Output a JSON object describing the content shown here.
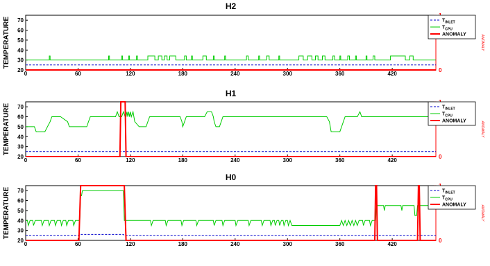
{
  "chart_data": [
    {
      "type": "line",
      "title": "H2",
      "ylabel": "TEMPERATURE",
      "right_ylabel": "ANOMALY",
      "xlim": [
        0,
        470
      ],
      "ylim": [
        20,
        75
      ],
      "right_ylim": [
        0,
        1
      ],
      "x_ticks": [
        0,
        60,
        120,
        180,
        240,
        300,
        360,
        420
      ],
      "y_ticks": [
        20,
        30,
        40,
        50,
        60,
        70
      ],
      "right_y_ticks": [
        0,
        1
      ],
      "grid": false,
      "legend_position": "top-right",
      "legend": [
        {
          "main": "T",
          "sub": "INLET",
          "color": "#0000cc",
          "style": "dashed"
        },
        {
          "main": "T",
          "sub": "CPU",
          "color": "#00cc00",
          "style": "solid"
        },
        {
          "main": "ANOMALY",
          "sub": "",
          "color": "#ff0000",
          "style": "solid"
        }
      ],
      "series": [
        {
          "key": "inlet",
          "baseline": 25,
          "spikes": [],
          "color": "#0000cc"
        },
        {
          "key": "cpu",
          "baseline": 30,
          "color": "#00cc00",
          "spikes": [
            [
              27,
              28,
              34
            ],
            [
              95,
              96,
              34
            ],
            [
              110,
              111,
              34
            ],
            [
              118,
              119,
              34
            ],
            [
              127,
              128,
              34
            ],
            [
              140,
              148,
              34
            ],
            [
              152,
              156,
              34
            ],
            [
              159,
              162,
              34
            ],
            [
              165,
              172,
              34
            ],
            [
              182,
              184,
              34
            ],
            [
              190,
              191,
              34
            ],
            [
              203,
              207,
              34
            ],
            [
              215,
              216,
              34
            ],
            [
              228,
              229,
              34
            ],
            [
              253,
              255,
              34
            ],
            [
              267,
              268,
              34
            ],
            [
              276,
              279,
              34
            ],
            [
              290,
              291,
              34
            ],
            [
              313,
              318,
              34
            ],
            [
              323,
              328,
              34
            ],
            [
              332,
              335,
              34
            ],
            [
              340,
              343,
              34
            ],
            [
              352,
              354,
              34
            ],
            [
              360,
              361,
              34
            ],
            [
              369,
              371,
              34
            ],
            [
              378,
              379,
              34
            ],
            [
              390,
              391,
              34
            ],
            [
              398,
              400,
              34
            ],
            [
              418,
              435,
              34
            ],
            [
              440,
              444,
              34
            ]
          ]
        },
        {
          "key": "anomaly",
          "baseline": 0,
          "spikes": [],
          "color": "#ff0000"
        }
      ]
    },
    {
      "type": "line",
      "title": "H1",
      "ylabel": "TEMPERATURE",
      "right_ylabel": "ANOMALY",
      "xlim": [
        0,
        470
      ],
      "ylim": [
        20,
        75
      ],
      "right_ylim": [
        0,
        1
      ],
      "x_ticks": [
        0,
        60,
        120,
        180,
        240,
        300,
        360,
        420
      ],
      "y_ticks": [
        20,
        30,
        40,
        50,
        60,
        70
      ],
      "right_y_ticks": [
        0,
        1
      ],
      "grid": false,
      "legend_position": "top-right",
      "legend": [
        {
          "main": "T",
          "sub": "INLET",
          "color": "#0000cc",
          "style": "dashed"
        },
        {
          "main": "T",
          "sub": "CPU",
          "color": "#00cc00",
          "style": "solid"
        },
        {
          "main": "ANOMALY",
          "sub": "",
          "color": "#ff0000",
          "style": "solid"
        }
      ],
      "series": [
        {
          "key": "inlet",
          "baseline": 25,
          "spikes": [],
          "color": "#0000cc"
        },
        {
          "key": "cpu",
          "color": "#00cc00",
          "points": [
            [
              0,
              50
            ],
            [
              10,
              50
            ],
            [
              12,
              45
            ],
            [
              22,
              45
            ],
            [
              25,
              50
            ],
            [
              28,
              55
            ],
            [
              30,
              60
            ],
            [
              40,
              60
            ],
            [
              48,
              55
            ],
            [
              50,
              50
            ],
            [
              70,
              50
            ],
            [
              72,
              55
            ],
            [
              74,
              60
            ],
            [
              103,
              60
            ],
            [
              105,
              65
            ],
            [
              107,
              60
            ],
            [
              110,
              60
            ],
            [
              112,
              65
            ],
            [
              114,
              60
            ],
            [
              115,
              60
            ],
            [
              116,
              65
            ],
            [
              117,
              60
            ],
            [
              118,
              65
            ],
            [
              119,
              60
            ],
            [
              120,
              65
            ],
            [
              121,
              60
            ],
            [
              123,
              65
            ],
            [
              124,
              60
            ],
            [
              125,
              55
            ],
            [
              130,
              50
            ],
            [
              138,
              50
            ],
            [
              140,
              55
            ],
            [
              142,
              60
            ],
            [
              177,
              60
            ],
            [
              179,
              55
            ],
            [
              180,
              50
            ],
            [
              182,
              55
            ],
            [
              184,
              60
            ],
            [
              205,
              60
            ],
            [
              208,
              65
            ],
            [
              213,
              65
            ],
            [
              215,
              60
            ],
            [
              216,
              55
            ],
            [
              218,
              50
            ],
            [
              222,
              50
            ],
            [
              224,
              55
            ],
            [
              226,
              60
            ],
            [
              345,
              60
            ],
            [
              348,
              55
            ],
            [
              350,
              45
            ],
            [
              360,
              45
            ],
            [
              362,
              50
            ],
            [
              364,
              55
            ],
            [
              366,
              60
            ],
            [
              380,
              60
            ],
            [
              383,
              65
            ],
            [
              385,
              60
            ],
            [
              470,
              60
            ]
          ]
        },
        {
          "key": "anomaly",
          "color": "#ff0000",
          "step_points": [
            [
              0,
              0
            ],
            [
              108,
              0
            ],
            [
              109,
              1
            ],
            [
              114,
              1
            ],
            [
              115,
              0
            ],
            [
              470,
              0
            ]
          ]
        }
      ]
    },
    {
      "type": "line",
      "title": "H0",
      "ylabel": "TEMPERATURE",
      "right_ylabel": "ANOMALY",
      "xlim": [
        0,
        470
      ],
      "ylim": [
        20,
        75
      ],
      "right_ylim": [
        0,
        1
      ],
      "x_ticks": [
        0,
        60,
        120,
        180,
        240,
        300,
        360,
        420
      ],
      "y_ticks": [
        20,
        30,
        40,
        50,
        60,
        70
      ],
      "right_y_ticks": [
        0,
        1
      ],
      "grid": false,
      "legend_position": "top-right",
      "legend": [
        {
          "main": "T",
          "sub": "INLET",
          "color": "#0000cc",
          "style": "dashed"
        },
        {
          "main": "T",
          "sub": "CPU",
          "color": "#00cc00",
          "style": "solid"
        },
        {
          "main": "ANOMALY",
          "sub": "",
          "color": "#ff0000",
          "style": "solid"
        }
      ],
      "series": [
        {
          "key": "inlet",
          "color": "#0000cc",
          "points": [
            [
              0,
              25
            ],
            [
              62,
              25
            ],
            [
              63,
              26
            ],
            [
              112,
              26
            ],
            [
              113,
              25
            ],
            [
              470,
              25
            ]
          ]
        },
        {
          "key": "cpu",
          "color": "#00cc00",
          "points": [
            [
              0,
              40
            ],
            [
              2,
              40
            ],
            [
              3,
              35
            ],
            [
              5,
              40
            ],
            [
              8,
              40
            ],
            [
              9,
              35
            ],
            [
              11,
              40
            ],
            [
              18,
              40
            ],
            [
              19,
              35
            ],
            [
              21,
              40
            ],
            [
              26,
              40
            ],
            [
              27,
              35
            ],
            [
              29,
              40
            ],
            [
              33,
              40
            ],
            [
              34,
              35
            ],
            [
              36,
              40
            ],
            [
              40,
              40
            ],
            [
              41,
              35
            ],
            [
              43,
              40
            ],
            [
              46,
              40
            ],
            [
              47,
              35
            ],
            [
              49,
              40
            ],
            [
              54,
              40
            ],
            [
              55,
              35
            ],
            [
              57,
              40
            ],
            [
              62,
              40
            ],
            [
              63,
              65
            ],
            [
              64,
              65
            ],
            [
              65,
              70
            ],
            [
              112,
              70
            ],
            [
              113,
              40
            ],
            [
              143,
              40
            ],
            [
              144,
              35
            ],
            [
              146,
              40
            ],
            [
              160,
              40
            ],
            [
              161,
              35
            ],
            [
              163,
              40
            ],
            [
              178,
              40
            ],
            [
              179,
              35
            ],
            [
              181,
              40
            ],
            [
              195,
              40
            ],
            [
              196,
              35
            ],
            [
              198,
              40
            ],
            [
              215,
              40
            ],
            [
              216,
              35
            ],
            [
              218,
              40
            ],
            [
              225,
              40
            ],
            [
              226,
              35
            ],
            [
              228,
              40
            ],
            [
              240,
              40
            ],
            [
              241,
              35
            ],
            [
              243,
              40
            ],
            [
              255,
              40
            ],
            [
              256,
              35
            ],
            [
              258,
              40
            ],
            [
              270,
              40
            ],
            [
              271,
              35
            ],
            [
              273,
              40
            ],
            [
              280,
              40
            ],
            [
              281,
              35
            ],
            [
              283,
              40
            ],
            [
              285,
              40
            ],
            [
              286,
              35
            ],
            [
              288,
              40
            ],
            [
              290,
              40
            ],
            [
              291,
              35
            ],
            [
              293,
              40
            ],
            [
              295,
              40
            ],
            [
              296,
              35
            ],
            [
              298,
              40
            ],
            [
              300,
              40
            ],
            [
              301,
              35
            ],
            [
              303,
              40
            ],
            [
              305,
              35
            ],
            [
              360,
              35
            ],
            [
              362,
              40
            ],
            [
              364,
              35
            ],
            [
              366,
              40
            ],
            [
              368,
              35
            ],
            [
              370,
              40
            ],
            [
              372,
              35
            ],
            [
              374,
              40
            ],
            [
              376,
              35
            ],
            [
              378,
              40
            ],
            [
              380,
              35
            ],
            [
              382,
              40
            ],
            [
              386,
              40
            ],
            [
              387,
              35
            ],
            [
              389,
              40
            ],
            [
              394,
              40
            ],
            [
              395,
              35
            ],
            [
              397,
              40
            ],
            [
              401,
              40
            ],
            [
              402,
              55
            ],
            [
              410,
              55
            ],
            [
              411,
              50
            ],
            [
              412,
              55
            ],
            [
              430,
              55
            ],
            [
              431,
              50
            ],
            [
              432,
              55
            ],
            [
              445,
              55
            ],
            [
              446,
              45
            ],
            [
              448,
              45
            ],
            [
              449,
              55
            ],
            [
              470,
              55
            ]
          ]
        },
        {
          "key": "anomaly",
          "color": "#ff0000",
          "step_points": [
            [
              0,
              0
            ],
            [
              61,
              0
            ],
            [
              63,
              1
            ],
            [
              113,
              1
            ],
            [
              115,
              0
            ],
            [
              400,
              0
            ],
            [
              401,
              1
            ],
            [
              402,
              1
            ],
            [
              403,
              0
            ],
            [
              449,
              0
            ],
            [
              450,
              1
            ],
            [
              451,
              1
            ],
            [
              452,
              0
            ],
            [
              470,
              0
            ]
          ]
        }
      ]
    }
  ]
}
